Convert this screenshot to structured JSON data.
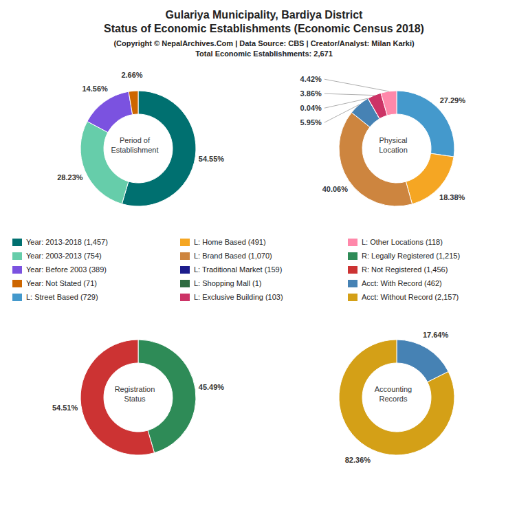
{
  "title": [
    "Gulariya Municipality, Bardiya District",
    "Status of Economic Establishments (Economic Census 2018)"
  ],
  "subtitle": [
    "(Copyright © NepalArchives.Com | Data Source: CBS | Creator/Analyst: Milan Karki)",
    "Total Economic Establishments: 2,671"
  ],
  "legend_entries": [
    {
      "label": "Year: 2013-2018 (1,457)",
      "color": "#007070"
    },
    {
      "label": "Year: 2003-2013 (754)",
      "color": "#66CDAA"
    },
    {
      "label": "Year: Before 2003 (389)",
      "color": "#7B52E0"
    },
    {
      "label": "Year: Not Stated (71)",
      "color": "#CD6600"
    },
    {
      "label": "L: Street Based (729)",
      "color": "#4499CC"
    },
    {
      "label": "L: Home Based (491)",
      "color": "#F5A623"
    },
    {
      "label": "L: Brand Based (1,070)",
      "color": "#CD853F"
    },
    {
      "label": "L: Traditional Market (159)",
      "color": "#1C1C8C"
    },
    {
      "label": "L: Shopping Mall (1)",
      "color": "#2E6B40"
    },
    {
      "label": "L: Exclusive Building (103)",
      "color": "#CC3366"
    },
    {
      "label": "L: Other Locations (118)",
      "color": "#FF88AA"
    },
    {
      "label": "R: Legally Registered (1,215)",
      "color": "#2E8B57"
    },
    {
      "label": "R: Not Registered (1,456)",
      "color": "#CC3333"
    },
    {
      "label": "Acct: With Record (462)",
      "color": "#4682B4"
    },
    {
      "label": "Acct: Without Record (2,157)",
      "color": "#D4A017"
    }
  ],
  "chart_data": [
    {
      "type": "pie",
      "title": "Period of\nEstablishment",
      "values": [
        54.55,
        28.23,
        14.56,
        2.66
      ],
      "value_labels": [
        "54.55%",
        "28.23%",
        "14.56%",
        "2.66%"
      ],
      "colors": [
        "#007070",
        "#66CDAA",
        "#7B52E0",
        "#CD6600"
      ],
      "data_labels": true
    },
    {
      "type": "pie",
      "title": "Physical\nLocation",
      "values": [
        27.29,
        18.38,
        40.06,
        5.95,
        0.04,
        3.86,
        4.42
      ],
      "value_labels": [
        "27.29%",
        "18.38%",
        "40.06%",
        "5.95%",
        "0.04%",
        "3.86%",
        "4.42%"
      ],
      "colors": [
        "#4499CC",
        "#F5A623",
        "#CD853F",
        "#4682B4",
        "#1C1C8C",
        "#CC3366",
        "#FF88AA"
      ],
      "data_labels": true
    },
    {
      "type": "pie",
      "title": "Registration\nStatus",
      "values": [
        45.49,
        54.51
      ],
      "value_labels": [
        "45.49%",
        "54.51%"
      ],
      "colors": [
        "#2E8B57",
        "#CC3333"
      ],
      "data_labels": true
    },
    {
      "type": "pie",
      "title": "Accounting\nRecords",
      "values": [
        17.64,
        82.36
      ],
      "value_labels": [
        "17.64%",
        "82.36%"
      ],
      "colors": [
        "#4682B4",
        "#D4A017"
      ],
      "data_labels": true
    }
  ]
}
